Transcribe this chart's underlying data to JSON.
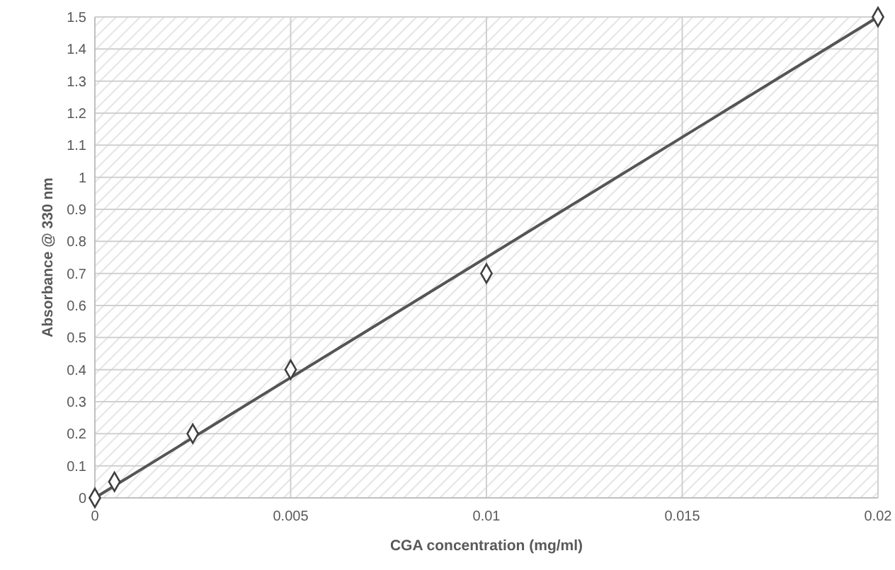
{
  "chart_data": {
    "type": "scatter",
    "xlabel": "CGA concentration (mg/ml)",
    "ylabel": "Absorbance @ 330 nm",
    "xlim": [
      0,
      0.02
    ],
    "xticks": [
      0,
      0.005,
      0.01,
      0.015,
      0.02
    ],
    "ylim": [
      0,
      1.5
    ],
    "yticks": [
      0,
      0.1,
      0.2,
      0.3,
      0.4,
      0.5,
      0.6,
      0.7,
      0.8,
      0.9,
      1,
      1.1,
      1.2,
      1.3,
      1.4,
      1.5
    ],
    "grid": true,
    "series": [
      {
        "type": "line",
        "color": "#555555",
        "x": [
          0,
          0.02
        ],
        "values": [
          0,
          1.5
        ],
        "marker": "none",
        "line_style": "solid"
      },
      {
        "color": "#404040",
        "x": [
          0,
          0.0005,
          0.0025,
          0.005,
          0.01,
          0.02
        ],
        "values": [
          0,
          0.05,
          0.2,
          0.4,
          0.7,
          1.5
        ],
        "marker": "diamond"
      }
    ]
  }
}
